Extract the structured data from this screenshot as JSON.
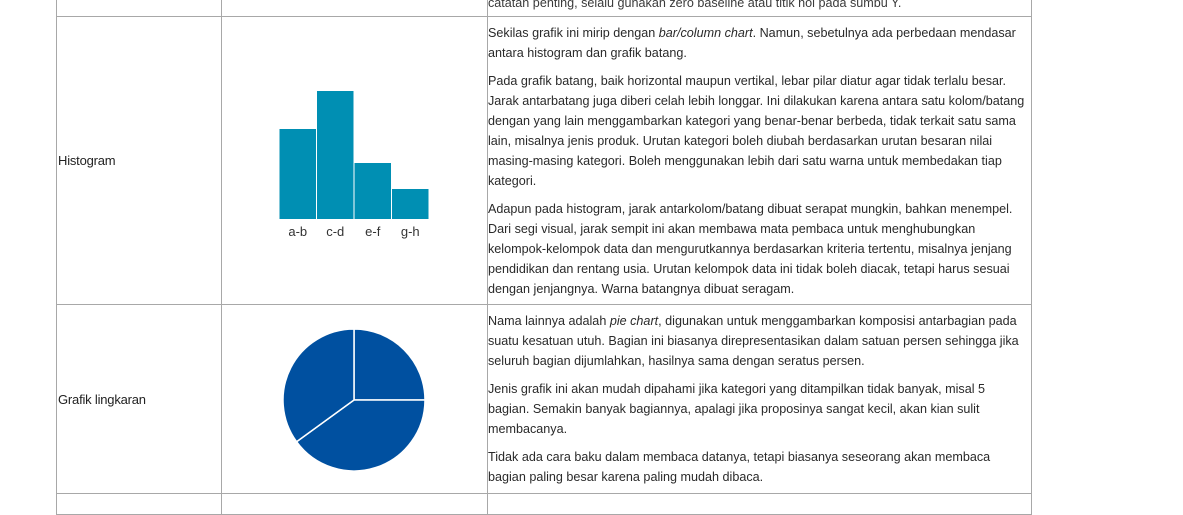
{
  "rows": {
    "top": {
      "text_fragment": "catatan penting, selalu gunakan zero baseline atau titik nol pada sumbu Y."
    },
    "histogram": {
      "label": "Histogram",
      "p1_a": "Sekilas grafik ini mirip dengan ",
      "p1_em": "bar/column chart",
      "p1_b": ". Namun, sebetulnya ada perbedaan mendasar antara histogram dan grafik batang.",
      "p2": "Pada grafik batang, baik horizontal maupun vertikal, lebar pilar diatur agar tidak terlalu besar. Jarak antarbatang juga diberi celah lebih longgar. Ini dilakukan karena antara satu kolom/batang dengan yang lain menggambarkan kategori yang benar-benar berbeda, tidak terkait satu sama lain, misalnya jenis produk. Urutan kategori boleh diubah berdasarkan urutan besaran nilai masing-masing kategori. Boleh menggunakan lebih dari satu warna untuk membedakan tiap kategori.",
      "p3": "Adapun pada histogram, jarak antarkolom/batang dibuat serapat mungkin, bahkan menempel. Dari segi visual, jarak sempit ini akan membawa mata pembaca untuk menghubungkan kelompok-kelompok data dan mengurutkannya berdasarkan kriteria tertentu, misalnya jenjang pendidikan dan rentang usia. Urutan kelompok data ini tidak boleh diacak, tetapi harus sesuai dengan jenjangnya. Warna batangnya dibuat seragam."
    },
    "pie": {
      "label": "Grafik lingkaran",
      "p1_a": "Nama lainnya adalah ",
      "p1_em": "pie chart",
      "p1_b": ", digunakan untuk menggambarkan komposisi antarbagian pada suatu kesatuan utuh. Bagian ini biasanya direpresentasikan dalam satuan persen sehingga jika seluruh bagian dijumlahkan, hasilnya sama dengan seratus persen.",
      "p2": "Jenis grafik ini akan mudah dipahami jika kategori yang ditampilkan tidak banyak, misal 5 bagian. Semakin banyak bagiannya, apalagi jika proposinya sangat kecil, akan kian sulit membacanya.",
      "p3": "Tidak ada cara baku dalam membaca datanya, tetapi biasanya seseorang akan membaca bagian paling besar karena paling mudah dibaca."
    }
  },
  "chart_data": [
    {
      "type": "bar",
      "categories": [
        "a-b",
        "c-d",
        "e-f",
        "g-h"
      ],
      "values": [
        90,
        128,
        56,
        30
      ],
      "color": "#008fb3"
    },
    {
      "type": "pie",
      "values": [
        25,
        40,
        35
      ],
      "color": "#0050a0",
      "divider_color": "#ffffff"
    }
  ],
  "colors": {
    "border": "#a8a8a8",
    "histogram_bar": "#008fb3",
    "pie_fill": "#0050a0"
  }
}
